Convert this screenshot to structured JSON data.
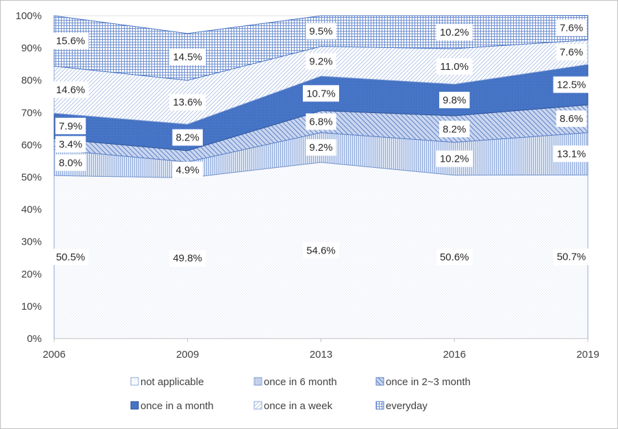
{
  "chart_data": {
    "type": "area",
    "stacked": true,
    "x": [
      "2006",
      "2009",
      "2013",
      "2016",
      "2019"
    ],
    "ylim": [
      0,
      100
    ],
    "yticks": [
      "0%",
      "10%",
      "20%",
      "30%",
      "40%",
      "50%",
      "60%",
      "70%",
      "80%",
      "90%",
      "100%"
    ],
    "legend_position": "bottom",
    "series": [
      {
        "name": "not applicable",
        "values": [
          50.5,
          49.8,
          54.6,
          50.6,
          50.7
        ],
        "labels": [
          "50.5%",
          "49.8%",
          "54.6%",
          "50.6%",
          "50.7%"
        ]
      },
      {
        "name": "once in 6 month",
        "values": [
          8.0,
          4.9,
          9.2,
          10.2,
          13.1
        ],
        "labels": [
          "8.0%",
          "4.9%",
          "9.2%",
          "10.2%",
          "13.1%"
        ]
      },
      {
        "name": "once in 2~3 month",
        "values": [
          3.4,
          3.5,
          6.8,
          8.2,
          8.6
        ],
        "labels": [
          "3.4%",
          "",
          "6.8%",
          "8.2%",
          "8.6%"
        ]
      },
      {
        "name": "once in a month",
        "values": [
          7.9,
          8.2,
          10.7,
          9.8,
          12.5
        ],
        "labels": [
          "7.9%",
          "8.2%",
          "10.7%",
          "9.8%",
          "12.5%"
        ]
      },
      {
        "name": "once in a week",
        "values": [
          14.6,
          13.6,
          9.2,
          11.0,
          7.6
        ],
        "labels": [
          "14.6%",
          "13.6%",
          "9.2%",
          "11.0%",
          "7.6%"
        ]
      },
      {
        "name": "everyday",
        "values": [
          15.6,
          14.5,
          9.5,
          10.2,
          7.6
        ],
        "labels": [
          "15.6%",
          "14.5%",
          "9.5%",
          "10.2%",
          "7.6%"
        ]
      }
    ]
  },
  "legend": {
    "row1": [
      "not applicable",
      "once in 6 month",
      "once in 2~3 month"
    ],
    "row2": [
      "once in a month",
      "once in a week",
      "everyday"
    ]
  }
}
